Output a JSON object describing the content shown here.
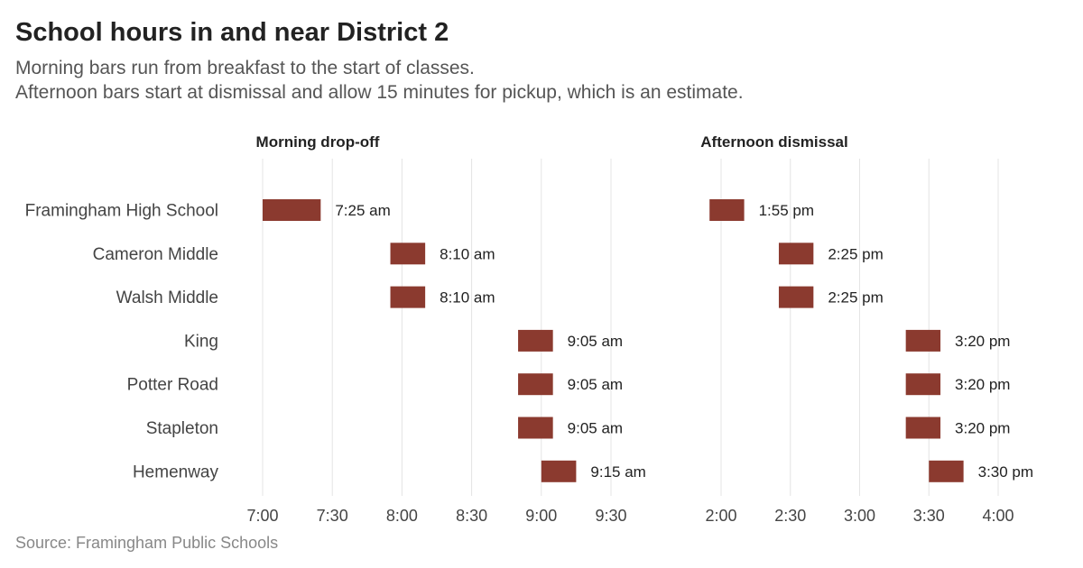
{
  "title": "School hours in and near District 2",
  "subtitle_lines": [
    "Morning bars run from breakfast to the start of classes.",
    "Afternoon bars start at dismissal and allow 15 minutes for pickup, which is an estimate."
  ],
  "source": "Source: Framingham Public Schools",
  "colors": {
    "bar": "#8b3a2f",
    "grid": "#e4e4e4",
    "title": "#222222",
    "subtitle": "#555555",
    "label": "#444444",
    "source": "#888888"
  },
  "chart_data": [
    {
      "type": "bar",
      "orientation": "horizontal-range",
      "panel_title": "Morning drop-off",
      "categories": [
        "Framingham High School",
        "Cameron Middle",
        "Walsh Middle",
        "King",
        "Potter Road",
        "Stapleton",
        "Hemenway"
      ],
      "start_minutes": [
        420,
        475,
        475,
        530,
        530,
        530,
        540
      ],
      "end_minutes": [
        445,
        490,
        490,
        545,
        545,
        545,
        555
      ],
      "labels": [
        "7:25 am",
        "8:10 am",
        "8:10 am",
        "9:05 am",
        "9:05 am",
        "9:05 am",
        "9:15 am"
      ],
      "xlim_minutes": [
        420,
        570
      ],
      "xticks_minutes": [
        420,
        450,
        480,
        510,
        540,
        570
      ],
      "xtick_labels": [
        "7:00",
        "7:30",
        "8:00",
        "8:30",
        "9:00",
        "9:30"
      ],
      "grid": true
    },
    {
      "type": "bar",
      "orientation": "horizontal-range",
      "panel_title": "Afternoon dismissal",
      "categories": [
        "Framingham High School",
        "Cameron Middle",
        "Walsh Middle",
        "King",
        "Potter Road",
        "Stapleton",
        "Hemenway"
      ],
      "start_minutes": [
        835,
        865,
        865,
        920,
        920,
        920,
        930
      ],
      "end_minutes": [
        850,
        880,
        880,
        935,
        935,
        935,
        945
      ],
      "labels": [
        "1:55 pm",
        "2:25 pm",
        "2:25 pm",
        "3:20 pm",
        "3:20 pm",
        "3:20 pm",
        "3:30 pm"
      ],
      "xlim_minutes": [
        840,
        960
      ],
      "xticks_minutes": [
        840,
        870,
        900,
        930,
        960
      ],
      "xtick_labels": [
        "2:00",
        "2:30",
        "3:00",
        "3:30",
        "4:00"
      ],
      "grid": true
    }
  ]
}
